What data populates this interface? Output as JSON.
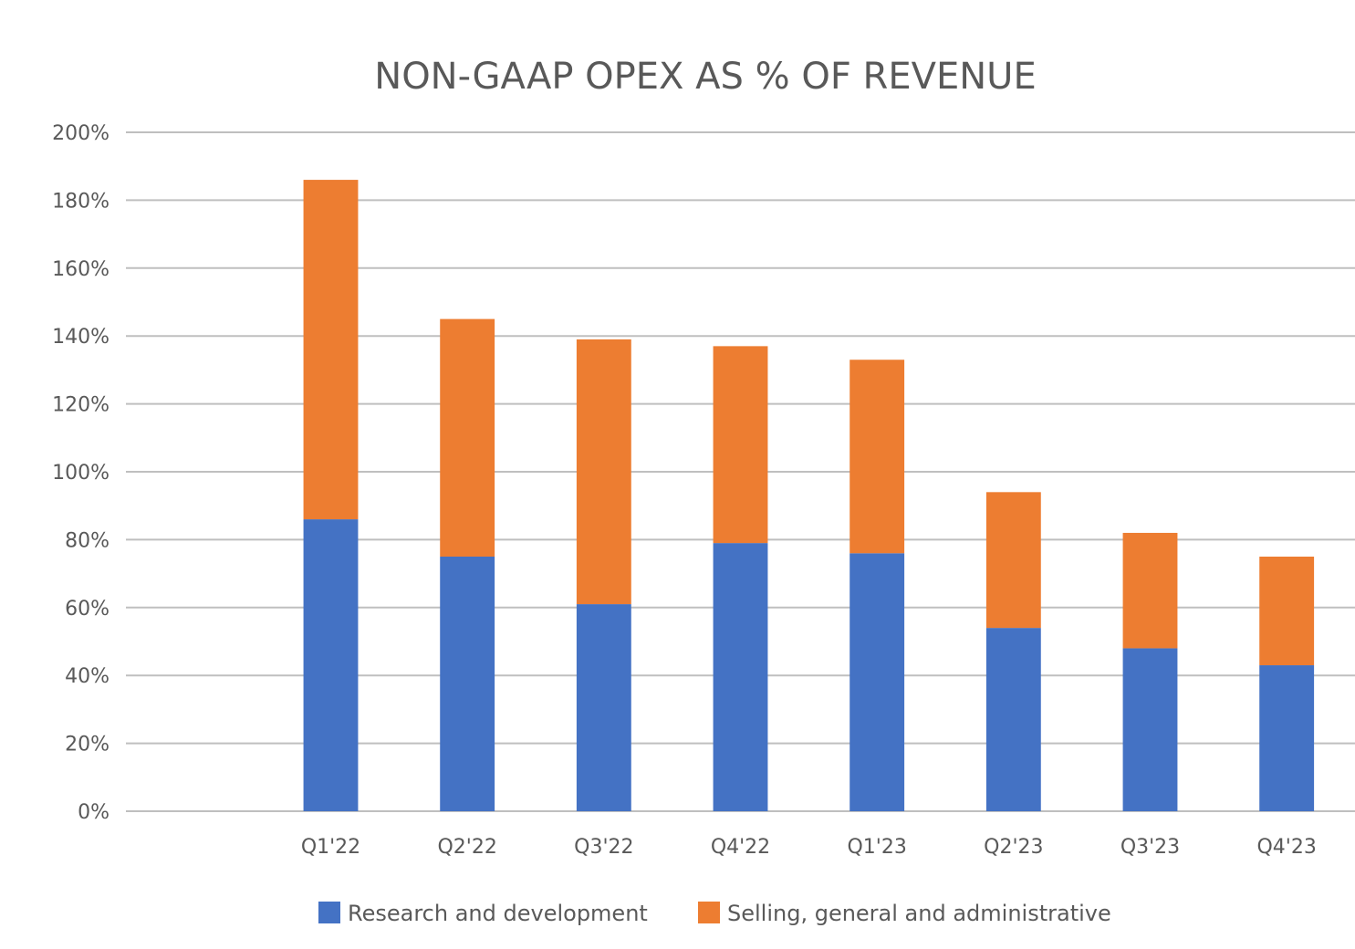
{
  "chart_data": {
    "type": "bar",
    "stacked": true,
    "title": "NON-GAAP OPEX AS % OF REVENUE",
    "xlabel": "",
    "ylabel": "",
    "ylim": [
      0,
      200
    ],
    "y_tick_values": [
      0,
      20,
      40,
      60,
      80,
      100,
      120,
      140,
      160,
      180,
      200
    ],
    "y_tick_format": "%",
    "grid": true,
    "legend_position": "bottom",
    "categories": [
      "",
      "Q1'22",
      "Q2'22",
      "Q3'22",
      "Q4'22",
      "Q1'23",
      "Q2'23",
      "Q3'23",
      "Q4'23"
    ],
    "series": [
      {
        "name": "Research and development",
        "color": "#4472C4",
        "values": [
          null,
          86,
          75,
          61,
          79,
          76,
          54,
          48,
          43
        ]
      },
      {
        "name": "Selling, general and administrative",
        "color": "#ED7D31",
        "values": [
          null,
          100,
          70,
          78,
          58,
          57,
          40,
          34,
          32
        ]
      }
    ]
  }
}
